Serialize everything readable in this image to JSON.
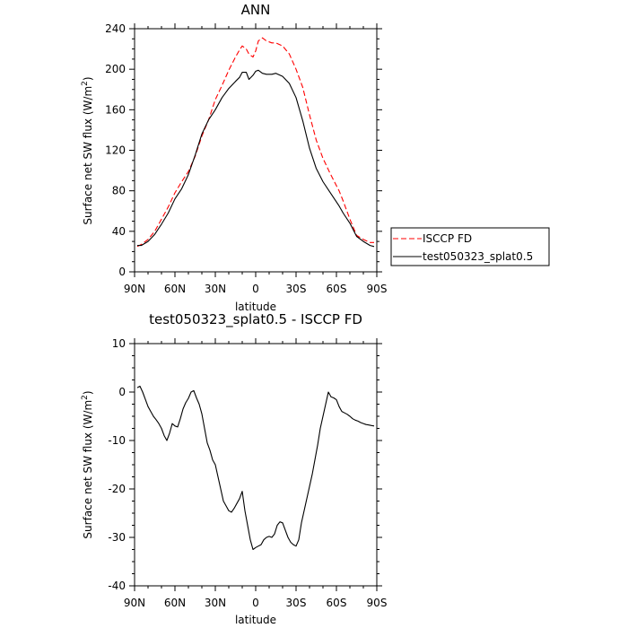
{
  "chart_data": [
    {
      "type": "line",
      "title": "ANN",
      "xlabel": "latitude",
      "ylabel": "Surface net SW flux (W/m",
      "ylabel_sup": "2",
      "ylabel_close": ")",
      "xlim": [
        90,
        -90
      ],
      "ylim": [
        0,
        240
      ],
      "yticks": [
        0,
        40,
        80,
        120,
        160,
        200,
        240
      ],
      "xticks": [
        {
          "v": 90,
          "label": "90N"
        },
        {
          "v": 60,
          "label": "60N"
        },
        {
          "v": 30,
          "label": "30N"
        },
        {
          "v": 0,
          "label": "0"
        },
        {
          "v": -30,
          "label": "30S"
        },
        {
          "v": -60,
          "label": "60S"
        },
        {
          "v": -90,
          "label": "90S"
        }
      ],
      "legend_position": "right",
      "series": [
        {
          "name": "ISCCP FD",
          "color": "#ff0000",
          "dash": "dashed",
          "x": [
            88,
            85,
            80,
            75,
            70,
            65,
            60,
            55,
            50,
            45,
            40,
            35,
            30,
            25,
            20,
            15,
            12,
            10,
            7,
            5,
            2,
            0,
            -2,
            -5,
            -8,
            -10,
            -12,
            -15,
            -20,
            -25,
            -30,
            -35,
            -40,
            -45,
            -50,
            -55,
            -60,
            -62,
            -65,
            -70,
            -75,
            -80,
            -85,
            -88
          ],
          "y": [
            25,
            27,
            32,
            40,
            52,
            64,
            78,
            89,
            99,
            114,
            134,
            150,
            170,
            184,
            199,
            212,
            219,
            223,
            220,
            215,
            212,
            218,
            228,
            231,
            228,
            227,
            226,
            226,
            223,
            215,
            200,
            182,
            155,
            130,
            112,
            98,
            85,
            80,
            70,
            52,
            36,
            32,
            29,
            29
          ]
        },
        {
          "name": "test050323_splat0.5",
          "color": "#000000",
          "dash": "solid",
          "x": [
            88,
            85,
            80,
            75,
            70,
            65,
            60,
            55,
            50,
            45,
            40,
            35,
            30,
            25,
            20,
            15,
            12,
            10,
            7,
            5,
            2,
            0,
            -2,
            -5,
            -8,
            -10,
            -12,
            -15,
            -20,
            -25,
            -30,
            -35,
            -40,
            -45,
            -50,
            -55,
            -60,
            -62,
            -65,
            -70,
            -75,
            -80,
            -85,
            -88
          ],
          "y": [
            26,
            26,
            30,
            37,
            47,
            58,
            72,
            82,
            96,
            115,
            136,
            150,
            160,
            172,
            181,
            188,
            192,
            197,
            197,
            190,
            194,
            198,
            199,
            196,
            195,
            195,
            195,
            196,
            193,
            186,
            172,
            149,
            122,
            102,
            89,
            79,
            69,
            65,
            58,
            48,
            35,
            30,
            26,
            25
          ]
        }
      ]
    },
    {
      "type": "line",
      "title": "test050323_splat0.5 - ISCCP FD",
      "xlabel": "latitude",
      "ylabel": "Surface net SW flux (W/m",
      "ylabel_sup": "2",
      "ylabel_close": ")",
      "xlim": [
        90,
        -90
      ],
      "ylim": [
        -40,
        10
      ],
      "yticks": [
        -40,
        -30,
        -20,
        -10,
        0,
        10
      ],
      "xticks": [
        {
          "v": 90,
          "label": "90N"
        },
        {
          "v": 60,
          "label": "60N"
        },
        {
          "v": 30,
          "label": "30N"
        },
        {
          "v": 0,
          "label": "0"
        },
        {
          "v": -30,
          "label": "30S"
        },
        {
          "v": -60,
          "label": "60S"
        },
        {
          "v": -90,
          "label": "90S"
        }
      ],
      "series": [
        {
          "color": "#000000",
          "dash": "solid",
          "x": [
            88,
            86,
            84,
            82,
            80,
            78,
            76,
            74,
            72,
            70,
            68,
            66,
            64,
            62,
            60,
            58,
            56,
            54,
            52,
            50,
            48,
            46,
            44,
            42,
            40,
            38,
            36,
            34,
            32,
            30,
            28,
            26,
            24,
            22,
            20,
            18,
            16,
            14,
            12,
            10,
            8,
            6,
            4,
            2,
            0,
            -2,
            -4,
            -6,
            -8,
            -10,
            -12,
            -14,
            -16,
            -18,
            -20,
            -22,
            -24,
            -26,
            -28,
            -30,
            -32,
            -34,
            -36,
            -38,
            -40,
            -42,
            -44,
            -46,
            -48,
            -50,
            -52,
            -54,
            -56,
            -58,
            -60,
            -62,
            -64,
            -66,
            -68,
            -70,
            -72,
            -74,
            -76,
            -78,
            -80,
            -82,
            -84,
            -86,
            -88
          ],
          "y": [
            0.9,
            1.2,
            0,
            -1.5,
            -3,
            -4,
            -5,
            -5.7,
            -6.5,
            -7.5,
            -9,
            -10,
            -8.5,
            -6.5,
            -7,
            -7.2,
            -5.5,
            -3.5,
            -2.2,
            -1.3,
            0,
            0.3,
            -1.2,
            -2.5,
            -4.5,
            -7.5,
            -10.5,
            -12,
            -14,
            -15,
            -17.5,
            -20,
            -22.5,
            -23.5,
            -24.5,
            -24.8,
            -24,
            -23,
            -22,
            -20.5,
            -24.5,
            -27.5,
            -30.5,
            -32.5,
            -32.1,
            -31.8,
            -31.5,
            -30.5,
            -30,
            -29.8,
            -30,
            -29.3,
            -27.5,
            -26.8,
            -27,
            -28.5,
            -30,
            -31,
            -31.5,
            -31.8,
            -30.5,
            -27,
            -24.5,
            -22,
            -19.5,
            -17,
            -14,
            -11,
            -7.5,
            -5,
            -2.5,
            0,
            -1,
            -1.2,
            -1.6,
            -3,
            -4,
            -4.3,
            -4.6,
            -5,
            -5.5,
            -5.8,
            -6,
            -6.3,
            -6.5,
            -6.7,
            -6.8,
            -6.9,
            -7
          ]
        }
      ]
    }
  ]
}
